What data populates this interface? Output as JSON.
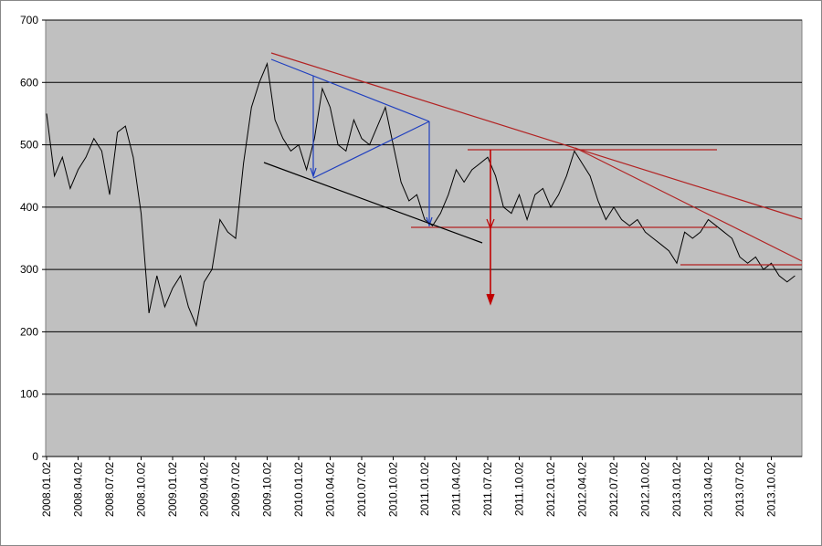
{
  "chart_data": {
    "type": "line",
    "categories": [
      "2008.01.02",
      null,
      null,
      null,
      "2008.04.02",
      null,
      null,
      null,
      "2008.07.02",
      null,
      null,
      null,
      "2008.10.02",
      null,
      null,
      null,
      "2009.01.02",
      null,
      null,
      null,
      "2009.04.02",
      null,
      null,
      null,
      "2009.07.02",
      null,
      null,
      null,
      "2009.10.02",
      null,
      null,
      null,
      "2010.01.02",
      null,
      null,
      null,
      "2010.04.02",
      null,
      null,
      null,
      "2010.07.02",
      null,
      null,
      null,
      "2010.10.02",
      null,
      null,
      null,
      "2011.01.02",
      null,
      null,
      null,
      "2011.04.02",
      null,
      null,
      null,
      "2011.07.02",
      null,
      null,
      null,
      "2011.10.02",
      null,
      null,
      null,
      "2012.01.02",
      null,
      null,
      null,
      "2012.04.02",
      null,
      null,
      null,
      "2012.07.02",
      null,
      null,
      null,
      "2012.10.02",
      null,
      null,
      null,
      "2013.01.02",
      null,
      null,
      null,
      "2013.04.02",
      null,
      null,
      null,
      "2013.07.02",
      null,
      null,
      null,
      "2013.10.02",
      null,
      null,
      null
    ],
    "values": [
      550,
      450,
      480,
      430,
      460,
      480,
      510,
      490,
      420,
      520,
      530,
      480,
      390,
      230,
      290,
      240,
      270,
      290,
      240,
      210,
      280,
      300,
      380,
      360,
      350,
      470,
      560,
      600,
      630,
      540,
      510,
      490,
      500,
      460,
      510,
      590,
      560,
      500,
      490,
      540,
      510,
      500,
      530,
      560,
      500,
      440,
      410,
      420,
      380,
      370,
      390,
      420,
      460,
      440,
      460,
      470,
      480,
      450,
      400,
      390,
      420,
      380,
      420,
      430,
      400,
      420,
      450,
      490,
      470,
      450,
      410,
      380,
      400,
      380,
      370,
      380,
      360,
      350,
      340,
      330,
      310,
      360,
      350,
      360,
      380,
      370,
      360,
      350,
      320,
      310,
      320,
      300,
      310,
      290,
      280,
      290
    ],
    "color": "#000000",
    "ylim": [
      0,
      700
    ],
    "yticks": [
      0,
      100,
      200,
      300,
      400,
      500,
      600,
      700
    ],
    "grid": true
  }
}
